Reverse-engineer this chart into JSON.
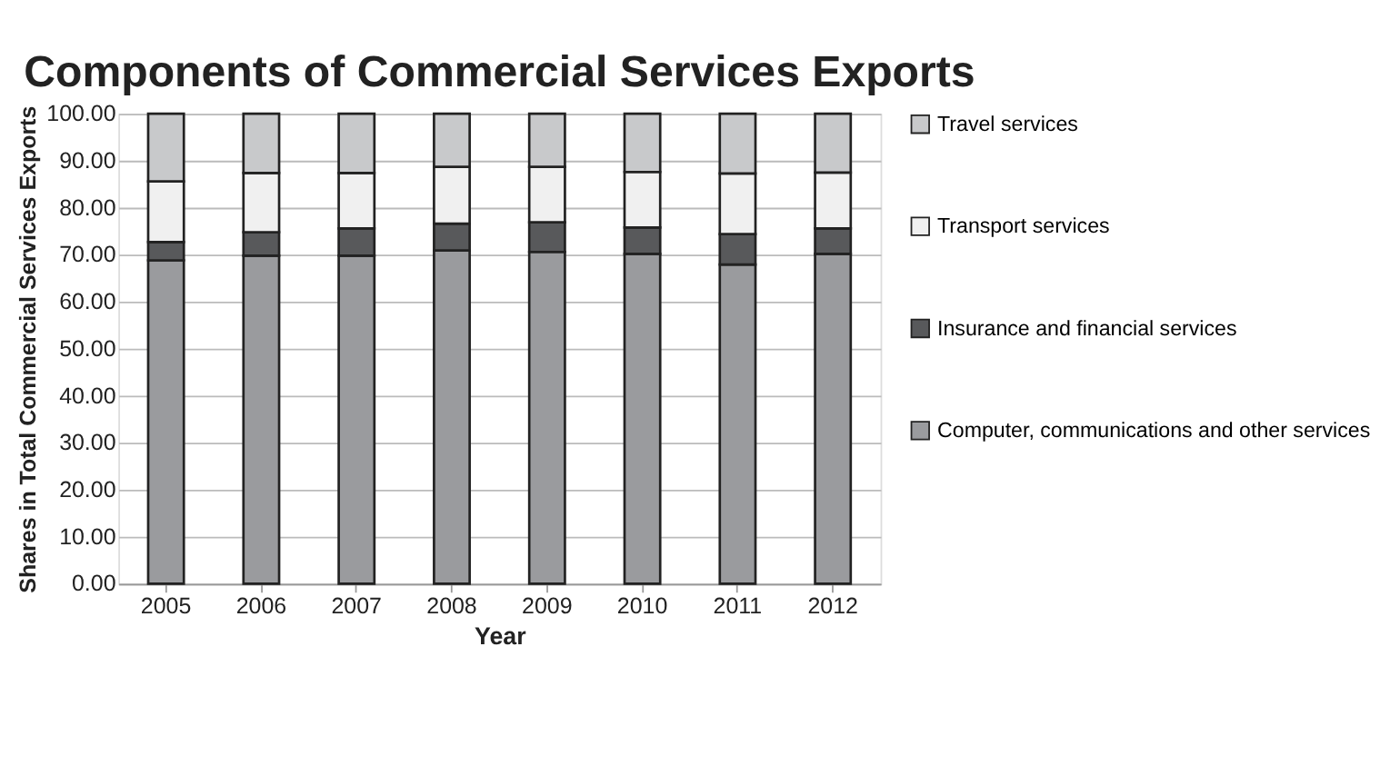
{
  "chart_data": {
    "type": "bar",
    "stacked": true,
    "title": "Components of Commercial Services Exports",
    "xlabel": "Year",
    "ylabel": "Shares in Total Commercial Services Exports",
    "categories": [
      "2005",
      "2006",
      "2007",
      "2008",
      "2009",
      "2010",
      "2011",
      "2012"
    ],
    "series": [
      {
        "name": "Computer, communications and other services",
        "color": "#9a9b9e",
        "values": [
          68.8,
          69.8,
          69.8,
          70.9,
          70.6,
          70.2,
          67.9,
          70.2
        ]
      },
      {
        "name": "Insurance and financial services",
        "color": "#58595b",
        "values": [
          3.9,
          5.0,
          5.8,
          5.7,
          6.3,
          5.6,
          6.5,
          5.4
        ]
      },
      {
        "name": "Transport services",
        "color": "#f0f0f0",
        "values": [
          12.9,
          12.6,
          11.8,
          12.1,
          11.8,
          11.8,
          12.9,
          11.9
        ]
      },
      {
        "name": "Travel services",
        "color": "#c8c9cb",
        "values": [
          14.4,
          12.6,
          12.6,
          11.3,
          11.3,
          12.4,
          12.7,
          12.5
        ]
      }
    ],
    "ylim": [
      0,
      100
    ],
    "yticks": [
      {
        "value": 0,
        "label": "0.00"
      },
      {
        "value": 10,
        "label": "10.00"
      },
      {
        "value": 20,
        "label": "20.00"
      },
      {
        "value": 30,
        "label": "30.00"
      },
      {
        "value": 40,
        "label": "40.00"
      },
      {
        "value": 50,
        "label": "50.00"
      },
      {
        "value": 60,
        "label": "60.00"
      },
      {
        "value": 70,
        "label": "70.00"
      },
      {
        "value": 80,
        "label": "80.00"
      },
      {
        "value": 90,
        "label": "90.00"
      },
      {
        "value": 100,
        "label": "100.00"
      }
    ],
    "grid": "y",
    "legend": "right"
  }
}
